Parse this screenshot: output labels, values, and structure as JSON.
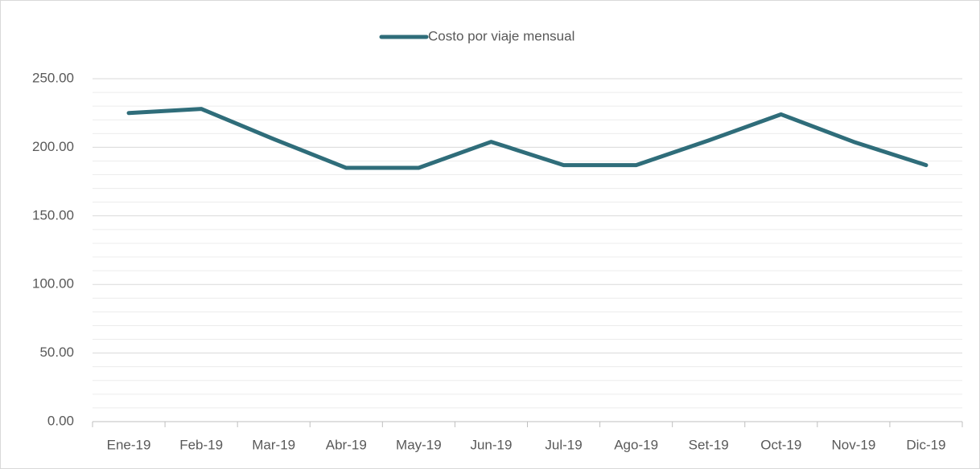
{
  "chart_data": {
    "type": "line",
    "categories": [
      "Ene-19",
      "Feb-19",
      "Mar-19",
      "Abr-19",
      "May-19",
      "Jun-19",
      "Jul-19",
      "Ago-19",
      "Set-19",
      "Oct-19",
      "Nov-19",
      "Dic-19"
    ],
    "series": [
      {
        "name": "Costo por viaje mensual",
        "color": "#2f6d7a",
        "values": [
          225,
          228,
          206,
          185,
          185,
          204,
          187,
          187,
          205,
          224,
          204,
          187
        ]
      }
    ],
    "ylim": [
      0,
      250
    ],
    "yticks": [
      {
        "value": 0,
        "label": "0.00"
      },
      {
        "value": 50,
        "label": "50.00"
      },
      {
        "value": 100,
        "label": "100.00"
      },
      {
        "value": 150,
        "label": "150.00"
      },
      {
        "value": 200,
        "label": "200.00"
      },
      {
        "value": 250,
        "label": "250.00"
      }
    ],
    "minor_yticks": [
      10,
      20,
      30,
      40,
      60,
      70,
      80,
      90,
      110,
      120,
      130,
      140,
      160,
      170,
      180,
      190,
      210,
      220,
      230,
      240
    ],
    "grid": true,
    "legend": "top"
  }
}
